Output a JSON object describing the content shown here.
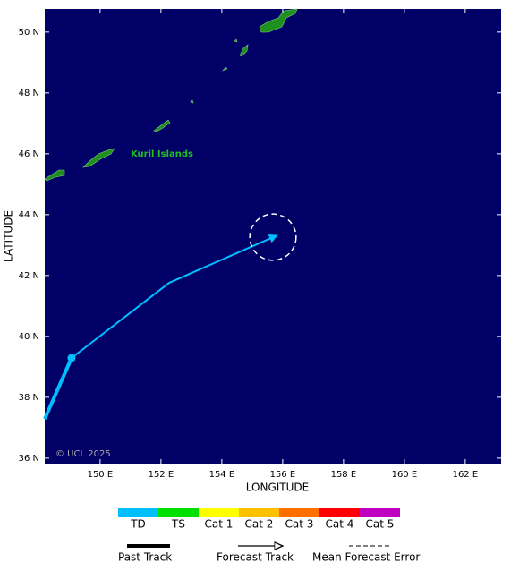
{
  "chart_data": {
    "type": "track",
    "x_label": "LONGITUDE",
    "y_label": "LATITUDE",
    "xlim": [
      148.18,
      163.18
    ],
    "ylim": [
      35.82,
      50.76
    ],
    "xticks": [
      {
        "value": 150,
        "label": "150 E"
      },
      {
        "value": 152,
        "label": "152 E"
      },
      {
        "value": 154,
        "label": "154 E"
      },
      {
        "value": 156,
        "label": "156 E"
      },
      {
        "value": 158,
        "label": "158 E"
      },
      {
        "value": 160,
        "label": "160 E"
      },
      {
        "value": 162,
        "label": "162 E"
      }
    ],
    "yticks": [
      {
        "value": 36,
        "label": "36 N"
      },
      {
        "value": 38,
        "label": "38 N"
      },
      {
        "value": 40,
        "label": "40 N"
      },
      {
        "value": 42,
        "label": "42 N"
      },
      {
        "value": 44,
        "label": "44 N"
      },
      {
        "value": 46,
        "label": "46 N"
      },
      {
        "value": 48,
        "label": "48 N"
      },
      {
        "value": 50,
        "label": "50 N"
      }
    ],
    "series": [
      {
        "name": "Past Track",
        "color": "#00bfff",
        "x": [
          148.18,
          149.06
        ],
        "y": [
          37.29,
          39.29
        ]
      },
      {
        "name": "Forecast Track",
        "color": "#00bfff",
        "x": [
          149.06,
          152.27,
          155.82
        ],
        "y": [
          39.29,
          41.76,
          43.32
        ]
      }
    ],
    "forecast_error": {
      "name": "Mean Forecast Error",
      "x": 155.68,
      "y": 43.26,
      "radius": 0.76
    },
    "annotations": [
      "Kuril Islands"
    ],
    "credit": "© UCL 2025",
    "intensity_scale": [
      {
        "label": "TD",
        "color": "#00bfff"
      },
      {
        "label": "TS",
        "color": "#00e000"
      },
      {
        "label": "Cat 1",
        "color": "#ffff00"
      },
      {
        "label": "Cat 2",
        "color": "#ffc000"
      },
      {
        "label": "Cat 3",
        "color": "#ff6f00"
      },
      {
        "label": "Cat 4",
        "color": "#ff0000"
      },
      {
        "label": "Cat 5",
        "color": "#c000c0"
      }
    ]
  }
}
